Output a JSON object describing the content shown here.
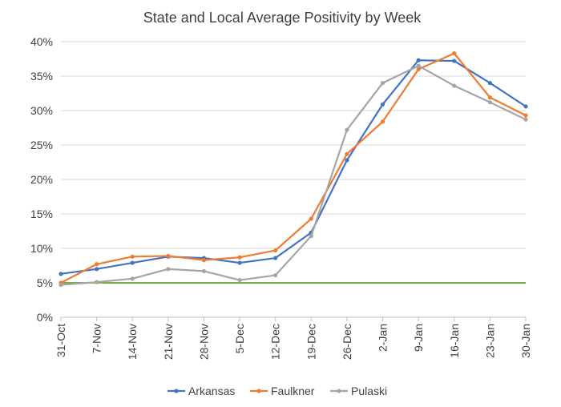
{
  "chart_data": {
    "type": "line",
    "title": "State and Local Average Positivity by Week",
    "categories": [
      "31-Oct",
      "7-Nov",
      "14-Nov",
      "21-Nov",
      "28-Nov",
      "5-Dec",
      "12-Dec",
      "19-Dec",
      "26-Dec",
      "2-Jan",
      "9-Jan",
      "16-Jan",
      "23-Jan",
      "30-Jan"
    ],
    "y_tick_labels": [
      "0%",
      "5%",
      "10%",
      "15%",
      "20%",
      "25%",
      "30%",
      "35%",
      "40%"
    ],
    "ylim": [
      0,
      40
    ],
    "y_unit": "%",
    "grid": "horizontal",
    "legend_position": "bottom",
    "reference_line": {
      "value": 5,
      "color": "#70ad47"
    },
    "series": [
      {
        "name": "Arkansas",
        "color": "#4472c4",
        "values": [
          6.3,
          7.0,
          7.9,
          8.8,
          8.6,
          7.9,
          8.6,
          12.3,
          22.8,
          30.9,
          37.3,
          37.2,
          34.0,
          30.6
        ]
      },
      {
        "name": "Faulkner",
        "color": "#ed7d31",
        "values": [
          5.0,
          7.7,
          8.8,
          8.9,
          8.3,
          8.7,
          9.7,
          14.3,
          23.7,
          28.4,
          36.0,
          38.3,
          31.9,
          29.3
        ]
      },
      {
        "name": "Pulaski",
        "color": "#a5a5a5",
        "values": [
          4.7,
          5.1,
          5.6,
          7.0,
          6.7,
          5.4,
          6.1,
          11.8,
          27.2,
          34.0,
          36.5,
          33.6,
          31.2,
          28.7
        ]
      }
    ]
  }
}
